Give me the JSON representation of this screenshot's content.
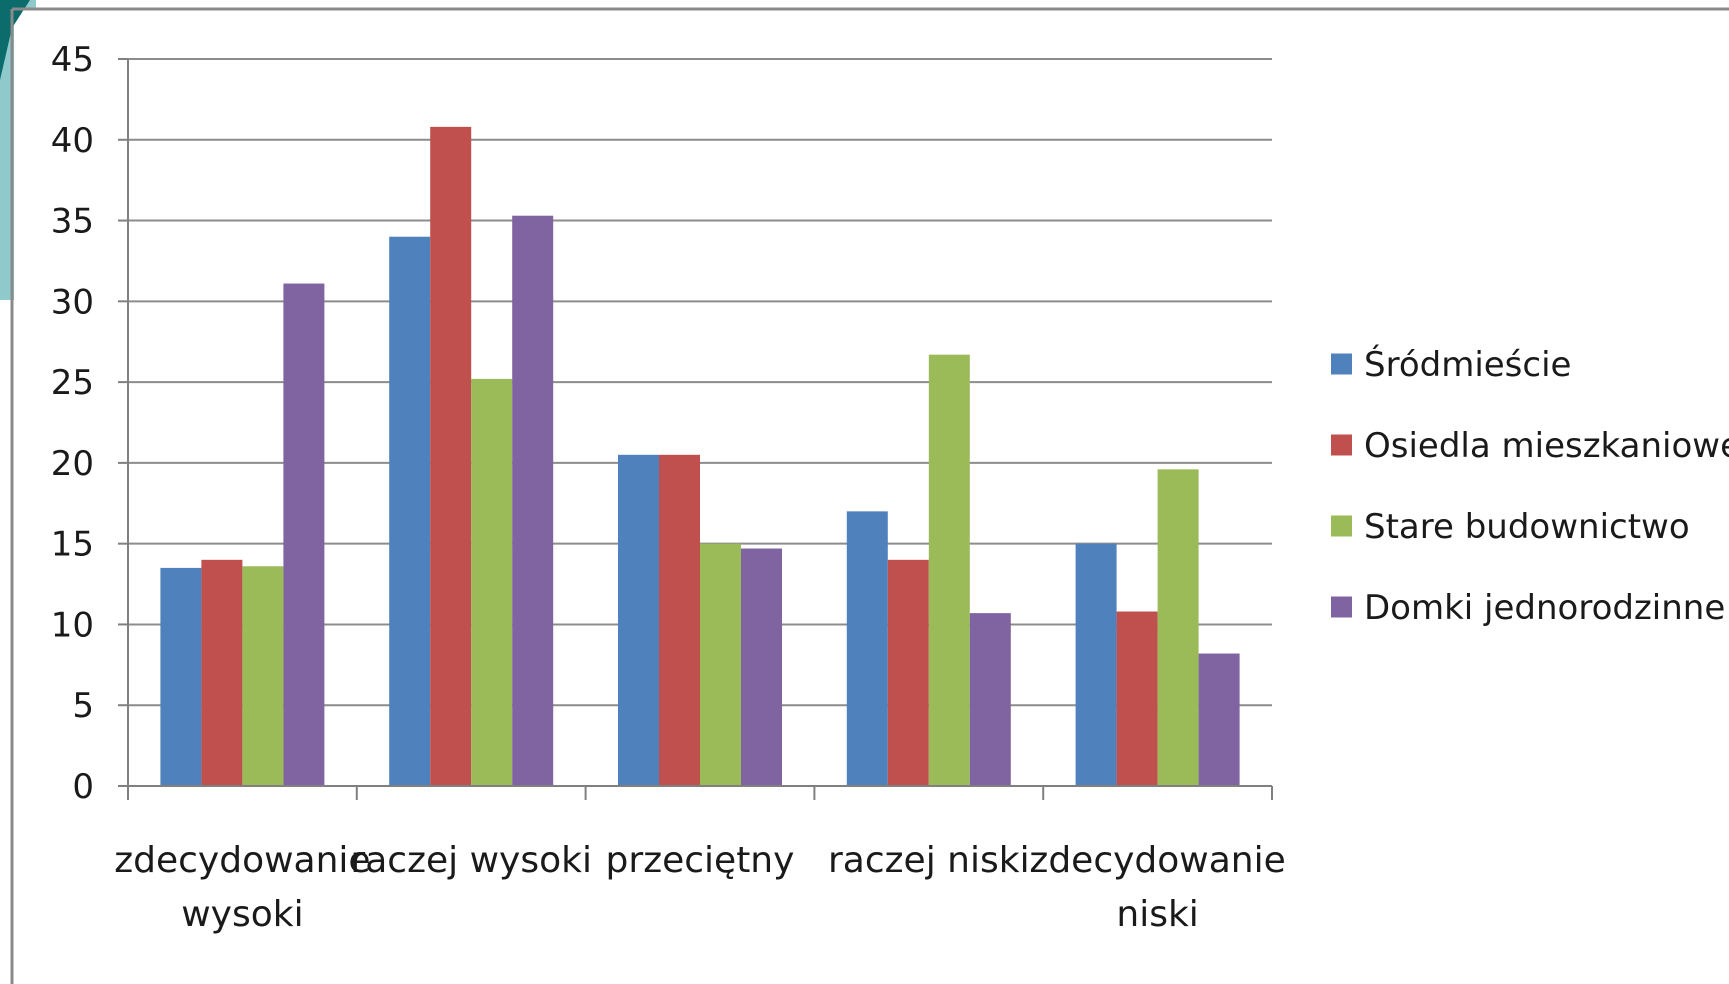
{
  "chart_data": {
    "type": "bar",
    "categories": [
      [
        "zdecydowanie",
        "wysoki"
      ],
      [
        "raczej wysoki"
      ],
      [
        "przeciętny"
      ],
      [
        "raczej niski"
      ],
      [
        "zdecydowanie",
        "niski"
      ]
    ],
    "series": [
      {
        "name": "Śródmieście",
        "color": "#4f81bd",
        "values": [
          13.5,
          34,
          20.5,
          17,
          15
        ]
      },
      {
        "name": "Osiedla mieszkaniowe",
        "color": "#c0504d",
        "values": [
          14,
          40.8,
          20.5,
          14,
          10.8
        ]
      },
      {
        "name": "Stare budownictwo",
        "color": "#9bbb59",
        "values": [
          13.6,
          25.2,
          15,
          26.7,
          19.6
        ]
      },
      {
        "name": "Domki jednorodzinne",
        "color": "#8064a2",
        "values": [
          31.1,
          35.3,
          14.7,
          10.7,
          8.2
        ]
      }
    ],
    "yticks": [
      "0",
      "5",
      "10",
      "15",
      "20",
      "25",
      "30",
      "35",
      "40",
      "45"
    ],
    "ylim": [
      0,
      45
    ],
    "grid": true,
    "legend_position": "right",
    "title": "",
    "xlabel": "",
    "ylabel": ""
  },
  "decoration": {
    "corner_teal": "#0c6b6b",
    "corner_light": "#8fc9cc",
    "frame_color": "#8a8a8a"
  }
}
